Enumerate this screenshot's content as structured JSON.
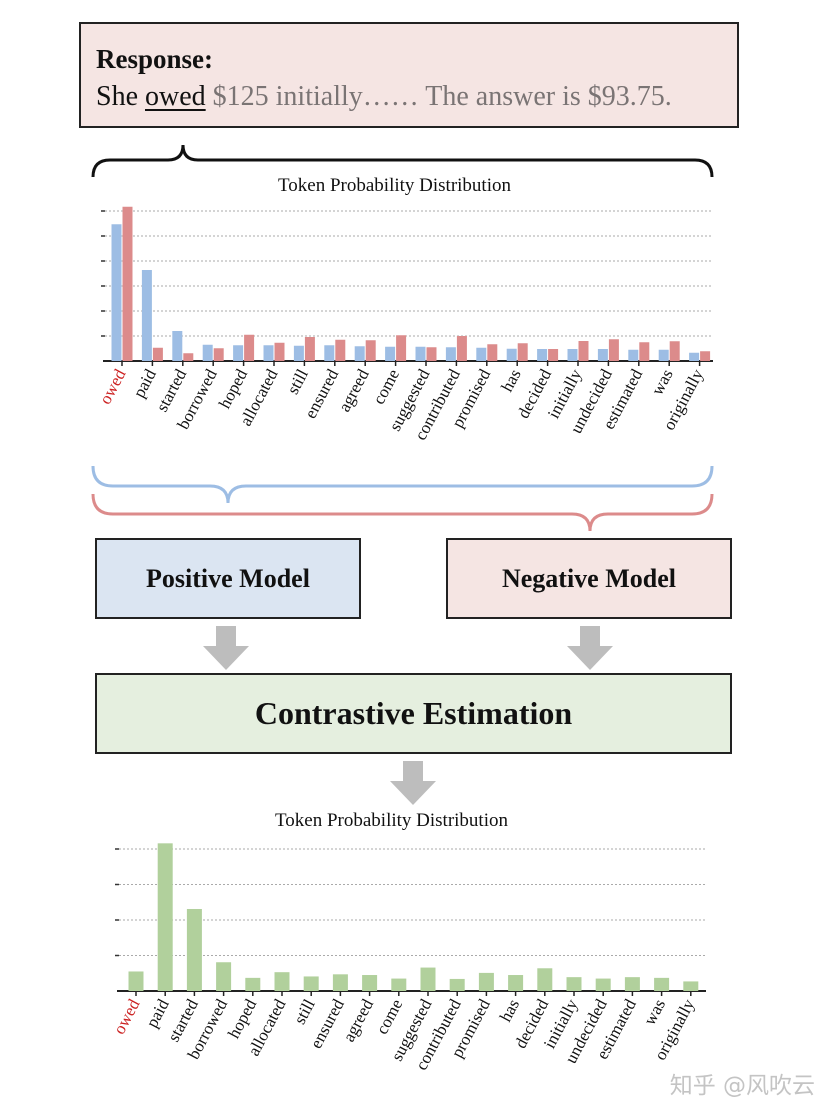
{
  "response": {
    "heading": "Response:",
    "prefix": "She ",
    "token": "owed",
    "rest": " $125 initially…… The answer is $93.75."
  },
  "models": {
    "positive": "Positive Model",
    "negative": "Negative Model",
    "contrastive": "Contrastive Estimation"
  },
  "colors": {
    "positive": "#9dbde4",
    "negative": "#dc8b8b",
    "contrastive": "#b1d09c",
    "highlight_label": "#cc2222"
  },
  "watermark": "知乎 @风吹云",
  "chart_data": [
    {
      "type": "bar",
      "title": "Token Probability Distribution",
      "categories": [
        "owed",
        "paid",
        "started",
        "borrowed",
        "hoped",
        "allocated",
        "still",
        "ensured",
        "agreed",
        "come",
        "suggested",
        "contributed",
        "promised",
        "has",
        "decided",
        "initially",
        "undecided",
        "estimated",
        "was",
        "originally"
      ],
      "highlight_category": "owed",
      "series": [
        {
          "name": "Positive Model",
          "values": [
            5.47,
            3.64,
            1.2,
            0.65,
            0.63,
            0.63,
            0.61,
            0.63,
            0.59,
            0.57,
            0.57,
            0.55,
            0.53,
            0.49,
            0.48,
            0.48,
            0.48,
            0.45,
            0.45,
            0.33
          ]
        },
        {
          "name": "Negative Model",
          "values": [
            6.17,
            0.53,
            0.31,
            0.51,
            1.05,
            0.73,
            0.96,
            0.85,
            0.83,
            1.03,
            0.55,
            1.0,
            0.67,
            0.71,
            0.48,
            0.8,
            0.87,
            0.75,
            0.79,
            0.39
          ]
        }
      ],
      "ylim": [
        0,
        6.3
      ],
      "yticks": [
        1,
        2,
        3,
        4,
        5,
        6
      ],
      "grid": true
    },
    {
      "type": "bar",
      "title": "Token Probability Distribution",
      "categories": [
        "owed",
        "paid",
        "started",
        "borrowed",
        "hoped",
        "allocated",
        "still",
        "ensured",
        "agreed",
        "come",
        "suggested",
        "contributed",
        "promised",
        "has",
        "decided",
        "initially",
        "undecided",
        "estimated",
        "was",
        "originally"
      ],
      "highlight_category": "owed",
      "series": [
        {
          "name": "Contrastive Estimation",
          "values": [
            0.55,
            4.16,
            2.31,
            0.81,
            0.37,
            0.53,
            0.41,
            0.47,
            0.45,
            0.35,
            0.66,
            0.34,
            0.51,
            0.45,
            0.64,
            0.39,
            0.35,
            0.39,
            0.37,
            0.27
          ]
        }
      ],
      "ylim": [
        0,
        4.2
      ],
      "yticks": [
        1,
        2,
        3,
        4
      ],
      "grid": true
    }
  ]
}
